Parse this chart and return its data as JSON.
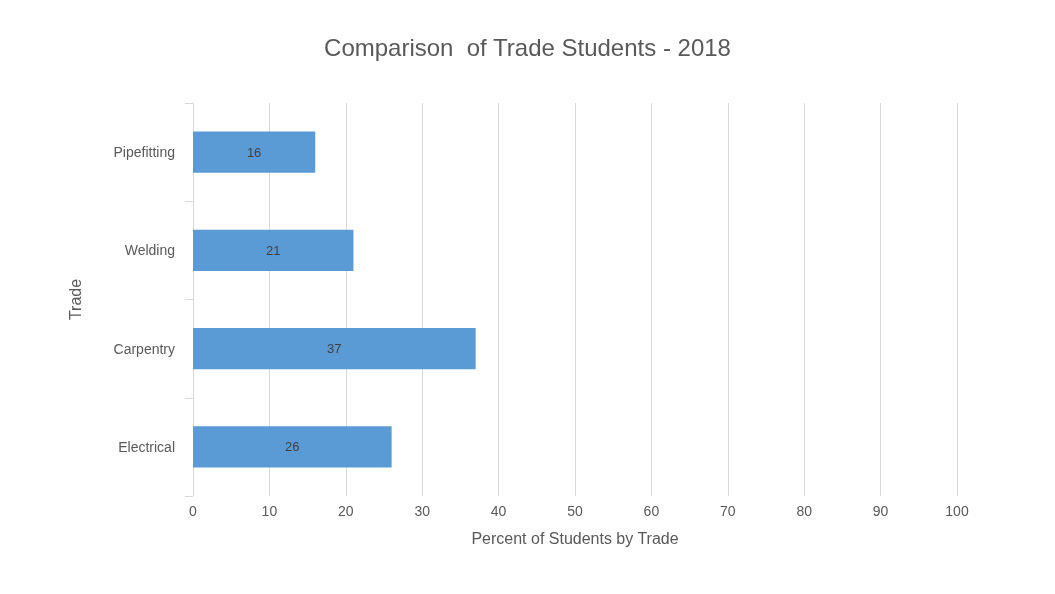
{
  "chart_data": {
    "type": "bar",
    "orientation": "horizontal",
    "title": "Comparison  of Trade Students - 2018",
    "xlabel": "Percent of Students by Trade",
    "ylabel": "Trade",
    "categories": [
      "Pipefitting",
      "Welding",
      "Carpentry",
      "Electrical"
    ],
    "values": [
      16,
      21,
      37,
      26
    ],
    "color": "#5b9bd5",
    "data_labels": true,
    "xlim": [
      0,
      100
    ],
    "xticks": [
      0,
      10,
      20,
      30,
      40,
      50,
      60,
      70,
      80,
      90,
      100
    ],
    "grid": "x"
  }
}
